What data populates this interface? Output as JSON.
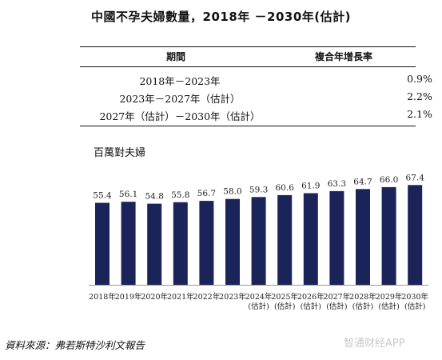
{
  "title": "中國不孕夫婦數量，2018年 －2030年(估計)",
  "table": {
    "header": {
      "period": "期間",
      "cagr": "複合年增長率"
    },
    "rows": [
      {
        "period": "2018年－2023年",
        "cagr": "0.9%"
      },
      {
        "period": "2023年－2027年（估計）",
        "cagr": "2.2%"
      },
      {
        "period": "2027年（估計）－2030年（估計）",
        "cagr": "2.1%"
      }
    ]
  },
  "source": "資料來源：弗若斯特沙利文報告",
  "watermark": "智通财经APP",
  "chart_data": {
    "type": "bar",
    "unit_label": "百萬對夫婦",
    "categories": [
      [
        "2018年"
      ],
      [
        "2019年"
      ],
      [
        "2020年"
      ],
      [
        "2021年"
      ],
      [
        "2022年"
      ],
      [
        "2023年"
      ],
      [
        "2024年",
        "(估計)"
      ],
      [
        "2025年",
        "(估計)"
      ],
      [
        "2026年",
        "(估計)"
      ],
      [
        "2027年",
        "(估計)"
      ],
      [
        "2028年",
        "(估計)"
      ],
      [
        "2029年",
        "(估計)"
      ],
      [
        "2030年",
        "(估計)"
      ]
    ],
    "values": [
      55.4,
      56.1,
      54.8,
      55.8,
      56.7,
      58.0,
      59.3,
      60.6,
      61.9,
      63.3,
      64.7,
      66.0,
      67.4
    ],
    "value_labels": [
      "55.4",
      "56.1",
      "54.8",
      "55.8",
      "56.7",
      "58.0",
      "59.3",
      "60.6",
      "61.9",
      "63.3",
      "64.7",
      "66.0",
      "67.4"
    ],
    "bar_color": "#1b2459",
    "ylim": [
      0,
      70
    ],
    "grid": false,
    "legend": "none"
  }
}
